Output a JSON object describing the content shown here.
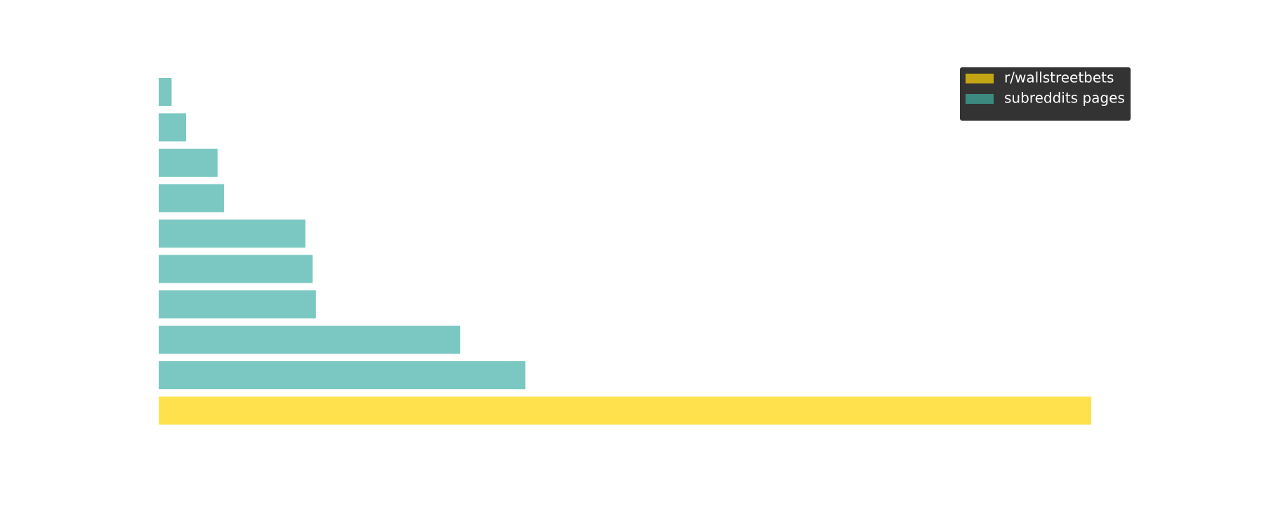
{
  "chart_data": {
    "type": "barh",
    "categories": [
      null,
      null,
      null,
      null,
      null,
      null,
      null,
      null,
      null,
      null
    ],
    "series": [
      {
        "name": "r/wallstreetbets",
        "color": "#ffe14d",
        "legend_color": "#c4a614",
        "values": [
          null,
          null,
          null,
          null,
          null,
          null,
          null,
          null,
          null,
          1157
        ]
      },
      {
        "name": "subreddits pages",
        "color": "#7ac8c1",
        "legend_color": "#3b8a80",
        "values": [
          16,
          34,
          73,
          81,
          182,
          191,
          195,
          374,
          455,
          null
        ]
      }
    ],
    "xlim": [
      0,
      1157
    ],
    "legend": "upper right"
  }
}
